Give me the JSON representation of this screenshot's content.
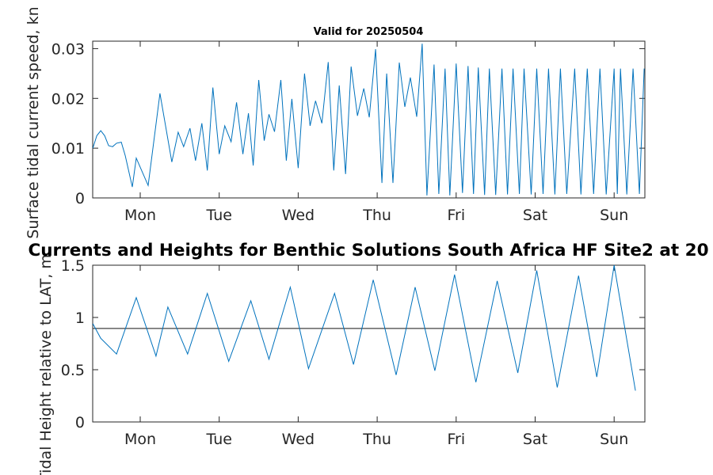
{
  "figure": {
    "main_title": "Currents and Heights for Benthic Solutions South Africa HF Site2 at 20",
    "panel_title": "Valid for 20250504"
  },
  "chart_data": [
    {
      "type": "line",
      "ylabel": "Surface tidal current speed, kn",
      "ylim": [
        0,
        0.0315
      ],
      "yticks": [
        0,
        0.01,
        0.02,
        0.03
      ],
      "ytick_labels": [
        "0",
        "0.01",
        "0.02",
        "0.03"
      ],
      "xticks": [
        "Mon",
        "Tue",
        "Wed",
        "Thu",
        "Fri",
        "Sat",
        "Sun"
      ],
      "line_color": "#0072bd",
      "grid": false,
      "series": [
        {
          "x": [
            -0.6,
            -0.55,
            -0.5,
            -0.45,
            -0.4,
            -0.35,
            -0.3,
            -0.24,
            -0.19,
            -0.1,
            -0.05,
            0.1,
            0.25,
            0.4,
            0.48,
            0.55,
            0.63,
            0.7,
            0.78,
            0.85,
            0.92,
            1.0,
            1.07,
            1.15,
            1.22,
            1.3,
            1.37,
            1.43,
            1.5,
            1.57,
            1.63,
            1.7,
            1.78,
            1.85,
            1.92,
            2.0,
            2.08,
            2.15,
            2.22,
            2.3,
            2.38,
            2.45,
            2.52,
            2.6,
            2.67,
            2.75,
            2.83,
            2.9,
            2.98,
            3.06,
            3.12,
            3.2,
            3.28,
            3.35,
            3.42,
            3.5,
            3.57,
            3.63,
            3.72,
            3.78,
            3.86,
            3.92,
            4.0,
            4.08,
            4.15,
            4.22,
            4.28,
            4.36,
            4.42,
            4.5,
            4.58,
            4.65,
            4.72,
            4.8,
            4.86,
            4.95,
            5.02,
            5.1,
            5.17,
            5.25,
            5.32,
            5.4,
            5.5,
            5.58,
            5.66,
            5.74,
            5.82,
            5.9,
            6.0,
            6.04,
            6.08,
            6.16,
            6.24,
            6.32,
            6.38,
            6.42
          ],
          "y": [
            0.01,
            0.0125,
            0.0135,
            0.0125,
            0.0105,
            0.0103,
            0.011,
            0.0112,
            0.0085,
            0.0022,
            0.008,
            0.0025,
            0.021,
            0.0072,
            0.0132,
            0.0103,
            0.014,
            0.0075,
            0.015,
            0.0055,
            0.0222,
            0.0088,
            0.0145,
            0.0113,
            0.0192,
            0.0088,
            0.017,
            0.0065,
            0.0237,
            0.0115,
            0.0168,
            0.0133,
            0.0237,
            0.0075,
            0.0199,
            0.006,
            0.025,
            0.0145,
            0.0195,
            0.015,
            0.0273,
            0.0055,
            0.0226,
            0.0048,
            0.0264,
            0.0165,
            0.022,
            0.0162,
            0.0299,
            0.003,
            0.025,
            0.003,
            0.0272,
            0.0183,
            0.0242,
            0.0163,
            0.031,
            0.0005,
            0.0268,
            0.0008,
            0.026,
            0.0005,
            0.027,
            0.001,
            0.0265,
            0.0008,
            0.0262,
            0.0006,
            0.026,
            0.0006,
            0.026,
            0.0007,
            0.026,
            0.0008,
            0.026,
            0.0007,
            0.026,
            0.0008,
            0.026,
            0.0007,
            0.026,
            0.0008,
            0.026,
            0.0007,
            0.026,
            0.0008,
            0.026,
            0.0007,
            0.026,
            0.0008,
            0.026,
            0.0007,
            0.026,
            0.0008,
            0.026,
            0.0007
          ]
        }
      ]
    },
    {
      "type": "line",
      "ylabel": "Tidal Height relative to LAT, m",
      "ylim": [
        0,
        1.5
      ],
      "yticks": [
        0,
        0.5,
        1,
        1.5
      ],
      "ytick_labels": [
        "0",
        "0.5",
        "1",
        "1.5"
      ],
      "xticks": [
        "Mon",
        "Tue",
        "Wed",
        "Thu",
        "Fri",
        "Sat",
        "Sun"
      ],
      "line_color": "#0072bd",
      "reference_line": 0.895,
      "reference_color": "#404040",
      "grid": false,
      "series": [
        {
          "x": [
            -0.6,
            -0.5,
            -0.3,
            -0.05,
            0.2,
            0.35,
            0.6,
            0.85,
            1.12,
            1.4,
            1.63,
            1.9,
            2.13,
            2.46,
            2.7,
            2.95,
            3.24,
            3.48,
            3.73,
            3.98,
            4.25,
            4.52,
            4.78,
            5.02,
            5.28,
            5.55,
            5.78,
            6.0,
            6.27,
            6.4
          ],
          "y": [
            0.94,
            0.8,
            0.65,
            1.19,
            0.63,
            1.1,
            0.65,
            1.23,
            0.58,
            1.16,
            0.6,
            1.29,
            0.51,
            1.23,
            0.55,
            1.36,
            0.45,
            1.29,
            0.49,
            1.41,
            0.38,
            1.35,
            0.47,
            1.45,
            0.33,
            1.4,
            0.43,
            1.5,
            0.3,
            0.82
          ]
        }
      ]
    }
  ]
}
